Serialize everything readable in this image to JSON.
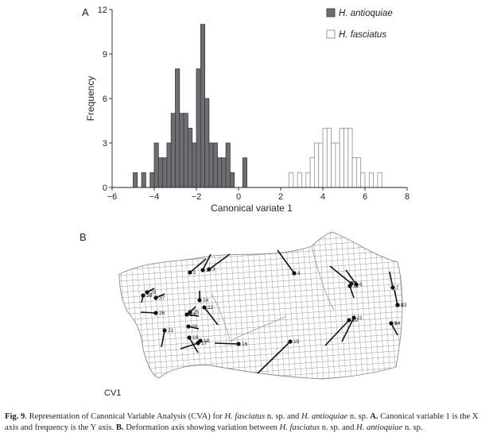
{
  "panel_a_label": "A",
  "panel_b_label": "B",
  "cv1_label": "CV1",
  "chart_data": {
    "type": "bar",
    "title": "",
    "xlabel": "Canonical variate 1",
    "ylabel": "Frequency",
    "xlim": [
      -6,
      8
    ],
    "ylim": [
      0,
      12
    ],
    "xticks": [
      -6,
      -4,
      -2,
      0,
      2,
      4,
      6,
      8
    ],
    "yticks": [
      0,
      3,
      6,
      9,
      12
    ],
    "bin_width": 0.2,
    "legend_position": "top-right",
    "grid": false,
    "series": [
      {
        "name": "H. antioquiae",
        "color": "#6d6e71",
        "bins": [
          {
            "x": -4.9,
            "y": 1
          },
          {
            "x": -4.5,
            "y": 1
          },
          {
            "x": -4.1,
            "y": 1
          },
          {
            "x": -3.9,
            "y": 3
          },
          {
            "x": -3.7,
            "y": 2
          },
          {
            "x": -3.5,
            "y": 2
          },
          {
            "x": -3.3,
            "y": 3
          },
          {
            "x": -3.1,
            "y": 5
          },
          {
            "x": -2.9,
            "y": 8
          },
          {
            "x": -2.7,
            "y": 5
          },
          {
            "x": -2.5,
            "y": 5
          },
          {
            "x": -2.3,
            "y": 4
          },
          {
            "x": -2.1,
            "y": 3
          },
          {
            "x": -1.9,
            "y": 8
          },
          {
            "x": -1.7,
            "y": 11
          },
          {
            "x": -1.5,
            "y": 6
          },
          {
            "x": -1.3,
            "y": 3
          },
          {
            "x": -1.1,
            "y": 3
          },
          {
            "x": -0.9,
            "y": 2
          },
          {
            "x": -0.7,
            "y": 2
          },
          {
            "x": -0.5,
            "y": 3
          },
          {
            "x": -0.3,
            "y": 1
          },
          {
            "x": 0.3,
            "y": 2
          }
        ]
      },
      {
        "name": "H. fasciatus",
        "color": "#ffffff",
        "bins": [
          {
            "x": 2.5,
            "y": 1
          },
          {
            "x": 2.9,
            "y": 1
          },
          {
            "x": 3.3,
            "y": 1
          },
          {
            "x": 3.5,
            "y": 2
          },
          {
            "x": 3.7,
            "y": 3
          },
          {
            "x": 3.9,
            "y": 3
          },
          {
            "x": 4.1,
            "y": 4
          },
          {
            "x": 4.3,
            "y": 4
          },
          {
            "x": 4.5,
            "y": 3
          },
          {
            "x": 4.7,
            "y": 3
          },
          {
            "x": 4.9,
            "y": 4
          },
          {
            "x": 5.1,
            "y": 4
          },
          {
            "x": 5.3,
            "y": 4
          },
          {
            "x": 5.5,
            "y": 2
          },
          {
            "x": 5.7,
            "y": 2
          },
          {
            "x": 5.9,
            "y": 1
          },
          {
            "x": 6.3,
            "y": 1
          },
          {
            "x": 6.7,
            "y": 1
          }
        ]
      }
    ]
  },
  "deformation": {
    "landmark_labels": [
      "1",
      "2",
      "3",
      "4",
      "5",
      "6",
      "7",
      "8",
      "9",
      "10",
      "11",
      "12",
      "13",
      "14",
      "15",
      "16",
      "17",
      "18",
      "19",
      "20",
      "21",
      "22",
      "23",
      "24",
      "25",
      "26",
      "27",
      "28",
      "29"
    ]
  },
  "caption": {
    "fig_label": "Fig. 9",
    "text_1": ". Representation of Canonical Variable Analysis (CVA) for ",
    "sp1": "H. fasciatus",
    "text_2": " n. sp. and ",
    "sp2": "H. antioquiae",
    "text_3": " n. sp. ",
    "a_label": "A.",
    "text_4": " Canonical variable 1 is the X axis and frequency is the Y axis. ",
    "b_label": "B.",
    "text_5": " Deformation axis showing variation between ",
    "sp3": "H. fasciatus",
    "text_6": " n. sp. and ",
    "sp4": "H. antioquiae",
    "text_7": " n. sp."
  }
}
